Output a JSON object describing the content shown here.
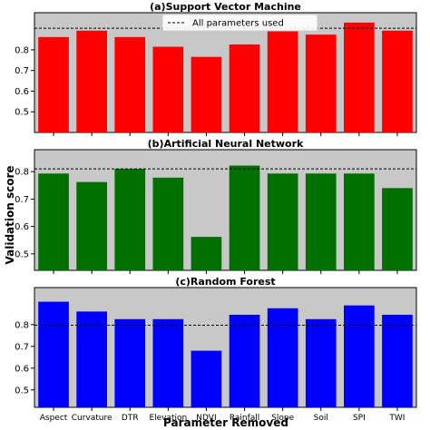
{
  "chart_data": {
    "type": "bar",
    "xlabel": "Parameter Removed",
    "ylabel": "Validation score",
    "categories": [
      "Aspect",
      "Curvature",
      "DTR",
      "Elevation",
      "NDVI",
      "Rainfall",
      "Slope",
      "Soil",
      "SPI",
      "TWI"
    ],
    "legend": {
      "label": "All parameters used",
      "placement": "top-center"
    },
    "grid": false,
    "panels": [
      {
        "title": "(a)Support Vector Machine",
        "color": "#ff0000",
        "background": "#c8c8c8",
        "reference": 0.905,
        "ylim": [
          0.4,
          0.98
        ],
        "yticks": [
          0.5,
          0.6,
          0.7,
          0.8
        ],
        "values": [
          0.862,
          0.893,
          0.862,
          0.815,
          0.766,
          0.826,
          0.893,
          0.874,
          0.932,
          0.893
        ]
      },
      {
        "title": "(b)Artificial Neural Network",
        "color": "#007000",
        "background": "#c8c8c8",
        "reference": 0.81,
        "ylim": [
          0.44,
          0.88
        ],
        "yticks": [
          0.5,
          0.6,
          0.7,
          0.8
        ],
        "values": [
          0.793,
          0.762,
          0.81,
          0.778,
          0.562,
          0.822,
          0.793,
          0.793,
          0.793,
          0.74
        ]
      },
      {
        "title": "(c)Random Forest",
        "color": "#0000ff",
        "background": "#c8c8c8",
        "reference": 0.797,
        "ylim": [
          0.42,
          0.97
        ],
        "yticks": [
          0.5,
          0.6,
          0.7,
          0.8
        ],
        "values": [
          0.905,
          0.86,
          0.825,
          0.825,
          0.68,
          0.845,
          0.875,
          0.825,
          0.888,
          0.845
        ]
      }
    ]
  }
}
